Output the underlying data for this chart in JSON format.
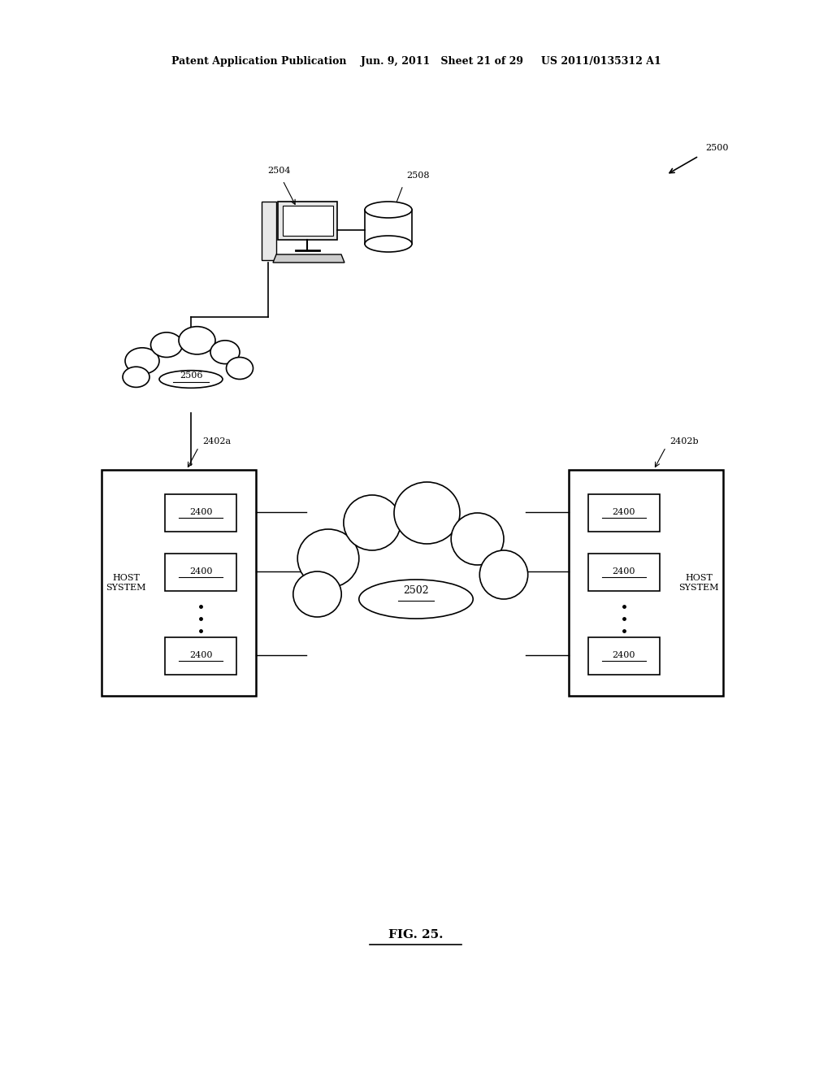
{
  "bg_color": "#ffffff",
  "header_text": "Patent Application Publication    Jun. 9, 2011   Sheet 21 of 29     US 2011/0135312 A1",
  "fig_label": "FIG. 25.",
  "diagram_label": "2500",
  "cloud_small_label": "2506",
  "cloud_large_label": "2502",
  "computer_label": "2504",
  "database_label": "2508",
  "host_left_label": "2402a",
  "host_right_label": "2402b",
  "host_left_text": "HOST\nSYSTEM",
  "host_right_text": "HOST\nSYSTEM",
  "module_label": "2400",
  "font_size_header": 9,
  "font_size_label": 8,
  "font_size_fig": 11
}
